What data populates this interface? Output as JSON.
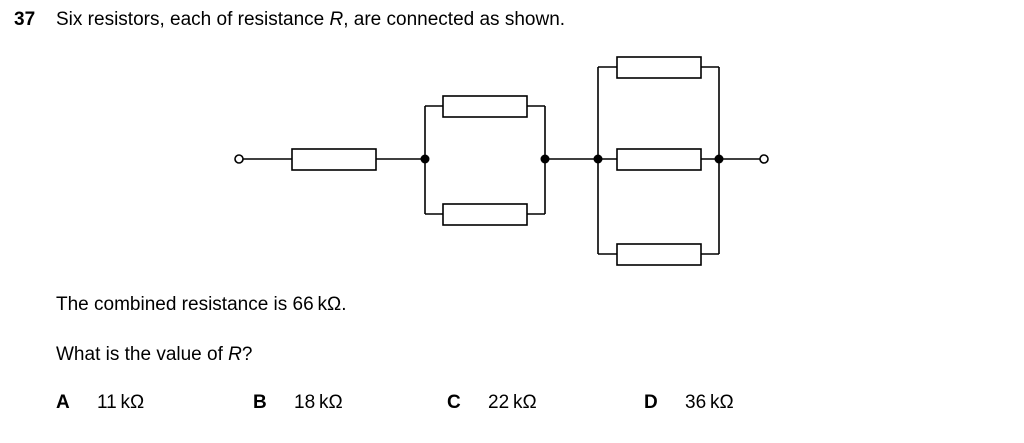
{
  "question": {
    "number": "37",
    "stem_before": "Six resistors, each of resistance ",
    "stem_var": "R",
    "stem_after": ", are connected as shown."
  },
  "combined": {
    "text": "The combined resistance is 66 kΩ."
  },
  "ask": {
    "before": "What is the value of ",
    "var": "R",
    "after": "?"
  },
  "options": [
    {
      "letter": "A",
      "value": "11 kΩ"
    },
    {
      "letter": "B",
      "value": "18 kΩ"
    },
    {
      "letter": "C",
      "value": "22 kΩ"
    },
    {
      "letter": "D",
      "value": "36 kΩ"
    }
  ],
  "colors": {
    "ink": "#000000",
    "background": "#ffffff"
  }
}
